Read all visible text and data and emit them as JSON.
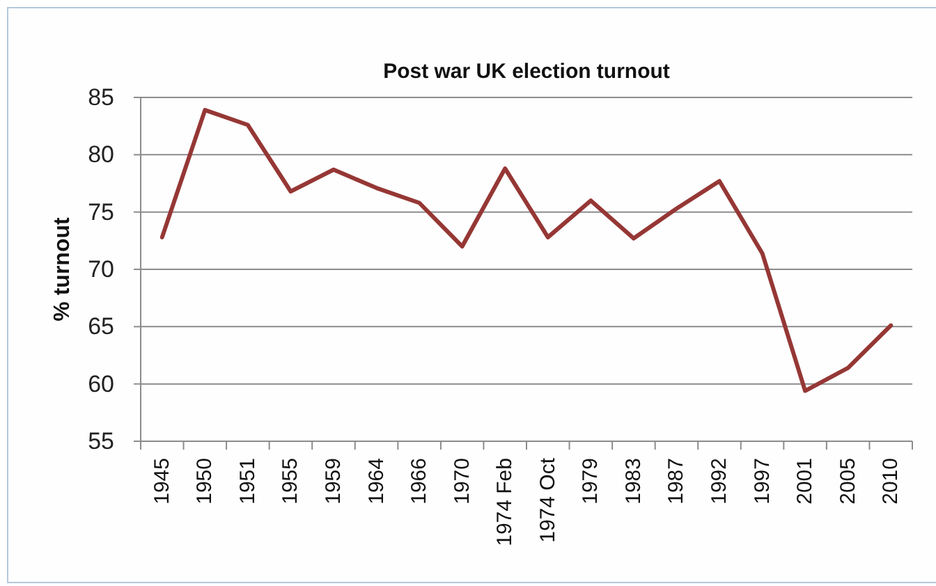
{
  "chart_data": {
    "type": "line",
    "title": "Post war UK election turnout",
    "ylabel": "% turnout",
    "categories": [
      "1945",
      "1950",
      "1951",
      "1955",
      "1959",
      "1964",
      "1966",
      "1970",
      "1974 Feb",
      "1974 Oct",
      "1979",
      "1983",
      "1987",
      "1992",
      "1997",
      "2001",
      "2005",
      "2010"
    ],
    "series": [
      {
        "color": "#953735",
        "values": [
          72.8,
          83.9,
          82.6,
          76.8,
          78.7,
          77.1,
          75.8,
          72.0,
          78.8,
          72.8,
          76.0,
          72.7,
          75.3,
          77.7,
          71.4,
          59.4,
          61.4,
          65.1
        ]
      }
    ],
    "ylim": [
      55,
      85
    ],
    "yticks": [
      55,
      60,
      65,
      70,
      75,
      80,
      85
    ],
    "grid": "y",
    "marker": "none",
    "line_style": "solid"
  }
}
